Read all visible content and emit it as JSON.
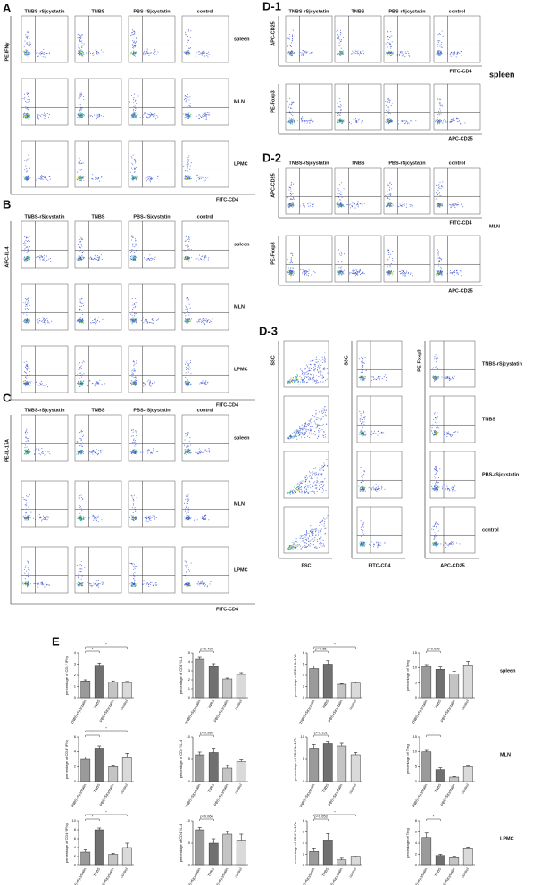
{
  "panel_a": {
    "label": "A",
    "columns": [
      "TNBS-rSjcystatin",
      "TNBS",
      "PBS-rSjcystatin",
      "control"
    ],
    "rows": [
      "spleen",
      "MLN",
      "LPMC"
    ],
    "y_label": "PE-IFNγ",
    "x_label": "FITC-CD4"
  },
  "panel_b": {
    "label": "B",
    "columns": [
      "TNBS-rSjcystatin",
      "TNBS",
      "PBS-rSjcystatin",
      "control"
    ],
    "rows": [
      "spleen",
      "MLN",
      "LPMC"
    ],
    "y_label": "APC-IL-4",
    "x_label": "FITC-CD4"
  },
  "panel_c": {
    "label": "C",
    "columns": [
      "TNBS-rSjcystatin",
      "TNBS",
      "PBS-rSjcystatin",
      "control"
    ],
    "rows": [
      "spleen",
      "MLN",
      "LPMC"
    ],
    "y_label": "PE-IL-17A",
    "x_label": "FITC-CD4"
  },
  "panel_d1": {
    "label": "D-1",
    "columns": [
      "TNBS-rSjcystatin",
      "TNBS",
      "PBS-rSjcystatin",
      "control"
    ],
    "row_label": "spleen",
    "y_labels": [
      "APC-CD25",
      "PE-Foxp3"
    ],
    "x_labels": [
      "FITC-CD4",
      "APC-CD25"
    ]
  },
  "panel_d2": {
    "label": "D-2",
    "columns": [
      "TNBS-rSjcystatin",
      "TNBS",
      "PBS-rSjcystatin",
      "control"
    ],
    "row_label": "MLN",
    "y_labels": [
      "APC-CD25",
      "PE-Foxp3"
    ],
    "x_labels": [
      "FITC-CD4",
      "APC-CD25"
    ]
  },
  "panel_d3": {
    "label": "D-3",
    "y_labels": [
      "SSC",
      "SSC",
      "PE-Foxp3"
    ],
    "x_labels": [
      "FSC",
      "FITC-CD4",
      "APC-CD25"
    ],
    "rows": [
      "TNBS-rSjcystatin",
      "TNBS",
      "PBS-rSjcystatin",
      "control"
    ]
  },
  "panel_e": {
    "label": "E",
    "rows": [
      "spleen",
      "MLN",
      "LPMC"
    ],
    "charts": [
      {
        "type": "bar",
        "y_label": "percentage of CD4⁺IFNγ",
        "categories": [
          "TNBS-rSjcystatin",
          "TNBS",
          "PBS-rSjcystatin",
          "control"
        ],
        "values": [
          1.5,
          2.9,
          1.4,
          1.35
        ],
        "errors": [
          0.1,
          0.2,
          0.1,
          0.1
        ],
        "colors": [
          "#9a9a9a",
          "#707070",
          "#c4c4c4",
          "#dadada"
        ],
        "ylim": [
          0,
          4
        ],
        "yticks": [
          0,
          1,
          2,
          3,
          4
        ],
        "annotations": [
          "*",
          "*"
        ]
      },
      {
        "type": "bar",
        "y_label": "percentage of CD4⁺IL-4",
        "categories": [
          "TNBS-rSjcystatin",
          "TNBS",
          "PBS-rSjcystatin",
          "control"
        ],
        "values": [
          4.3,
          3.5,
          2.1,
          2.6
        ],
        "errors": [
          0.3,
          0.3,
          0.1,
          0.2
        ],
        "colors": [
          "#9a9a9a",
          "#707070",
          "#c4c4c4",
          "#dadada"
        ],
        "ylim": [
          0,
          5
        ],
        "yticks": [
          0,
          1,
          2,
          3,
          4,
          5
        ],
        "annotations": [
          "p=0.408"
        ]
      },
      {
        "type": "bar",
        "y_label": "percentage of CD4⁺IL-17A",
        "categories": [
          "TNBS-rSjcystatin",
          "TNBS",
          "PBS-rSjcystatin",
          "control"
        ],
        "values": [
          5.2,
          6.0,
          2.4,
          2.6
        ],
        "errors": [
          0.5,
          0.6,
          0.1,
          0.2
        ],
        "colors": [
          "#9a9a9a",
          "#707070",
          "#c4c4c4",
          "#dadada"
        ],
        "ylim": [
          0,
          8
        ],
        "yticks": [
          0,
          2,
          4,
          6,
          8
        ],
        "annotations": [
          "p=0.65",
          "*"
        ]
      },
      {
        "type": "bar",
        "y_label": "percentage of Treg",
        "categories": [
          "TNBS-rSjcystatin",
          "TNBS",
          "PBS-rSjcystatin",
          "control"
        ],
        "values": [
          10.5,
          9.5,
          8,
          11
        ],
        "errors": [
          0.6,
          0.8,
          0.9,
          1.2
        ],
        "colors": [
          "#9a9a9a",
          "#707070",
          "#c4c4c4",
          "#dadada"
        ],
        "ylim": [
          0,
          15
        ],
        "yticks": [
          0,
          5,
          10,
          15
        ],
        "annotations": [
          "p=0.929"
        ]
      },
      {
        "type": "bar",
        "y_label": "percentage of CD4⁺IFNγ",
        "categories": [
          "TNBS-rSjcystatin",
          "TNBS",
          "PBS-rSjcystatin",
          "control"
        ],
        "values": [
          3,
          4.5,
          2,
          3.2
        ],
        "errors": [
          0.3,
          0.3,
          0.1,
          0.6
        ],
        "colors": [
          "#9a9a9a",
          "#707070",
          "#c4c4c4",
          "#dadada"
        ],
        "ylim": [
          0,
          6
        ],
        "yticks": [
          0,
          2,
          4,
          6
        ],
        "annotations": [
          "*",
          "*"
        ]
      },
      {
        "type": "bar",
        "y_label": "percentage of CD4⁺IL-4",
        "categories": [
          "TNBS-rSjcystatin",
          "TNBS",
          "PBS-rSjcystatin",
          "control"
        ],
        "values": [
          6,
          6.5,
          3,
          4.5
        ],
        "errors": [
          0.6,
          1,
          0.6,
          0.4
        ],
        "colors": [
          "#9a9a9a",
          "#707070",
          "#c4c4c4",
          "#dadada"
        ],
        "ylim": [
          0,
          10
        ],
        "yticks": [
          0,
          5,
          10
        ],
        "annotations": [
          "p=0.988"
        ]
      },
      {
        "type": "bar",
        "y_label": "percentage of CD4⁺IL-17A",
        "categories": [
          "TNBS-rSjcystatin",
          "TNBS",
          "PBS-rSjcystatin",
          "control"
        ],
        "values": [
          7.5,
          8.5,
          8,
          6
        ],
        "errors": [
          0.8,
          0.4,
          0.6,
          0.5
        ],
        "colors": [
          "#9a9a9a",
          "#707070",
          "#c4c4c4",
          "#dadada"
        ],
        "ylim": [
          0,
          10
        ],
        "yticks": [
          0,
          5,
          10
        ],
        "annotations": [
          "p=0.151"
        ]
      },
      {
        "type": "bar",
        "y_label": "percentage of Treg",
        "categories": [
          "TNBS-rSjcystatin",
          "TNBS",
          "PBS-rSjcystatin",
          "control"
        ],
        "values": [
          10,
          4,
          1.5,
          5
        ],
        "errors": [
          0.5,
          0.6,
          0.2,
          0.2
        ],
        "colors": [
          "#9a9a9a",
          "#707070",
          "#c4c4c4",
          "#dadada"
        ],
        "ylim": [
          0,
          15
        ],
        "yticks": [
          0,
          5,
          10,
          15
        ],
        "annotations": [
          "*"
        ]
      },
      {
        "type": "bar",
        "y_label": "percentage of CD4⁺IFNγ",
        "categories": [
          "TNBS-rSjcystatin",
          "TNBS",
          "PBS-rSjcystatin",
          "control"
        ],
        "values": [
          3,
          8,
          2.5,
          4
        ],
        "errors": [
          0.5,
          0.4,
          0.2,
          1
        ],
        "colors": [
          "#9a9a9a",
          "#707070",
          "#c4c4c4",
          "#dadada"
        ],
        "ylim": [
          0,
          10
        ],
        "yticks": [
          0,
          2,
          4,
          6,
          8,
          10
        ],
        "annotations": [
          "*",
          "*"
        ]
      },
      {
        "type": "bar",
        "y_label": "percentage of CD4⁺IL-4",
        "categories": [
          "TNBS-rSjcystatin",
          "TNBS",
          "PBS-rSjcystatin",
          "control"
        ],
        "values": [
          8,
          5,
          7,
          5.5
        ],
        "errors": [
          0.5,
          1,
          0.6,
          1.5
        ],
        "colors": [
          "#9a9a9a",
          "#707070",
          "#c4c4c4",
          "#dadada"
        ],
        "ylim": [
          0,
          10
        ],
        "yticks": [
          0,
          5,
          10
        ],
        "annotations": [
          "p=0.066"
        ]
      },
      {
        "type": "bar",
        "y_label": "percentage of CD4⁺IL-17A",
        "categories": [
          "TNBS-rSjcystatin",
          "TNBS",
          "PBS-rSjcystatin",
          "control"
        ],
        "values": [
          2.5,
          4.5,
          1,
          1.5
        ],
        "errors": [
          0.5,
          1.2,
          0.3,
          0.2
        ],
        "colors": [
          "#9a9a9a",
          "#707070",
          "#c4c4c4",
          "#dadada"
        ],
        "ylim": [
          0,
          8
        ],
        "yticks": [
          0,
          2,
          4,
          6,
          8
        ],
        "annotations": [
          "p=0.053",
          "*"
        ]
      },
      {
        "type": "bar",
        "y_label": "percentage of Treg",
        "categories": [
          "TNBS-rSjcystatin",
          "TNBS",
          "PBS-rSjcystatin",
          "control"
        ],
        "values": [
          5,
          1.8,
          1.4,
          3
        ],
        "errors": [
          0.8,
          0.2,
          0.1,
          0.3
        ],
        "colors": [
          "#9a9a9a",
          "#707070",
          "#c4c4c4",
          "#dadada"
        ],
        "ylim": [
          0,
          8
        ],
        "yticks": [
          0,
          2,
          4,
          6,
          8
        ],
        "annotations": [
          "*"
        ]
      }
    ]
  }
}
